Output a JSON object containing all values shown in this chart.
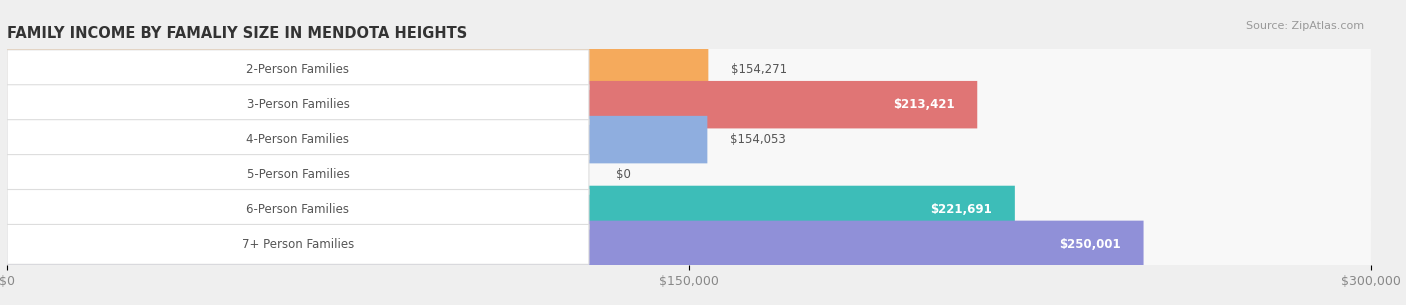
{
  "title": "FAMILY INCOME BY FAMALIY SIZE IN MENDOTA HEIGHTS",
  "source": "Source: ZipAtlas.com",
  "categories": [
    "2-Person Families",
    "3-Person Families",
    "4-Person Families",
    "5-Person Families",
    "6-Person Families",
    "7+ Person Families"
  ],
  "values": [
    154271,
    213421,
    154053,
    0,
    221691,
    250001
  ],
  "labels": [
    "$154,271",
    "$213,421",
    "$154,053",
    "$0",
    "$221,691",
    "$250,001"
  ],
  "bar_colors": [
    "#F5AA5C",
    "#E07575",
    "#8FAEDF",
    "#C9A8D6",
    "#3DBDB8",
    "#9090D8"
  ],
  "label_inside": [
    false,
    true,
    false,
    false,
    true,
    true
  ],
  "background_color": "#EFEFEF",
  "bar_bg_color": "#F8F8F8",
  "xlim": [
    0,
    300000
  ],
  "xticks": [
    0,
    150000,
    300000
  ],
  "xtick_labels": [
    "$0",
    "$150,000",
    "$300,000"
  ],
  "title_fontsize": 10.5,
  "tick_fontsize": 9,
  "bar_height": 0.68,
  "label_color_inside": "#FFFFFF",
  "label_color_outside": "#555555"
}
